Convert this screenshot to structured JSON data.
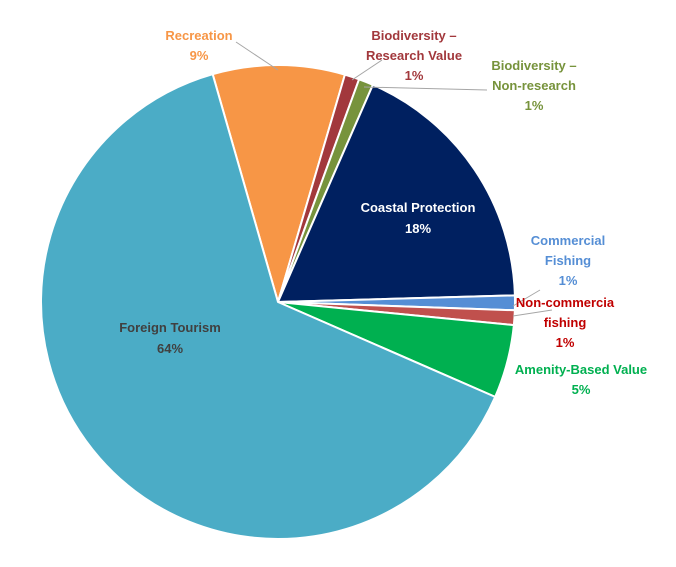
{
  "chart_data": {
    "type": "pie",
    "title": "",
    "legend": "none",
    "slices": [
      {
        "label_lines": [
          "Recreation"
        ],
        "value": 9,
        "value_label": "9%",
        "color": "#F79646",
        "label_color": "#F79646"
      },
      {
        "label_lines": [
          "Biodiversity –",
          "Research Value"
        ],
        "value": 1,
        "value_label": "1%",
        "color": "#A2383C",
        "label_color": "#A2383C"
      },
      {
        "label_lines": [
          "Biodiversity –",
          "Non-research"
        ],
        "value": 1,
        "value_label": "1%",
        "color": "#77933C",
        "label_color": "#77933C"
      },
      {
        "label_lines": [
          "Coastal Protection"
        ],
        "value": 18,
        "value_label": "18%",
        "color": "#002060",
        "label_color": "#FFFFFF"
      },
      {
        "label_lines": [
          "Commercial",
          "Fishing"
        ],
        "value": 1,
        "value_label": "1%",
        "color": "#558ED5",
        "label_color": "#558ED5"
      },
      {
        "label_lines": [
          "Non-commercia",
          "fishing"
        ],
        "value": 1,
        "value_label": "1%",
        "color": "#C0504D",
        "label_color": "#C00000"
      },
      {
        "label_lines": [
          "Amenity-Based Value"
        ],
        "value": 5,
        "value_label": "5%",
        "color": "#00B050",
        "label_color": "#00B050"
      },
      {
        "label_lines": [
          "Foreign Tourism"
        ],
        "value": 64,
        "value_label": "64%",
        "color": "#4BACC6",
        "label_color": "#404040"
      }
    ]
  }
}
